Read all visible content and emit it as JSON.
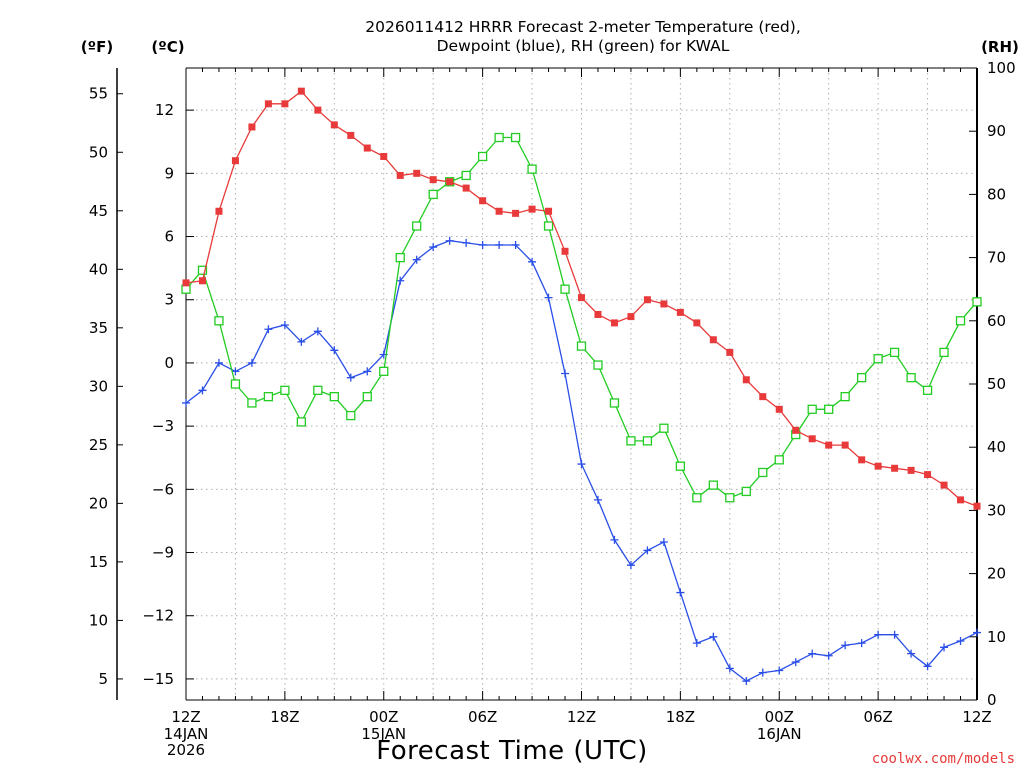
{
  "title_line1": "2026011412 HRRR Forecast 2-meter Temperature (red),",
  "title_line2": "Dewpoint (blue), RH (green) for KWAL",
  "credit": "coolwx.com/models",
  "colors": {
    "temperature": "#e83a3a",
    "dewpoint": "#2a4fe8",
    "rh": "#22cc22",
    "grid": "#b0b0b0",
    "axis": "#000000"
  },
  "chart_data": {
    "type": "line",
    "title": "2026011412 HRRR Forecast 2-meter Temperature (red), Dewpoint (blue), RH (green) for KWAL",
    "xlabel": "Forecast Time (UTC)",
    "x_hours": [
      0,
      1,
      2,
      3,
      4,
      5,
      6,
      7,
      8,
      9,
      10,
      11,
      12,
      13,
      14,
      15,
      16,
      17,
      18,
      19,
      20,
      21,
      22,
      23,
      24,
      25,
      26,
      27,
      28,
      29,
      30,
      31,
      32,
      33,
      34,
      35,
      36,
      37,
      38,
      39,
      40,
      41,
      42,
      43,
      44,
      45,
      46,
      47,
      48
    ],
    "xlim": [
      0,
      48
    ],
    "x_ticks": [
      {
        "hour": 0,
        "label": "12Z",
        "sub1": "14JAN",
        "sub2": "2026"
      },
      {
        "hour": 6,
        "label": "18Z",
        "sub1": "",
        "sub2": ""
      },
      {
        "hour": 12,
        "label": "00Z",
        "sub1": "15JAN",
        "sub2": ""
      },
      {
        "hour": 18,
        "label": "06Z",
        "sub1": "",
        "sub2": ""
      },
      {
        "hour": 24,
        "label": "12Z",
        "sub1": "",
        "sub2": ""
      },
      {
        "hour": 30,
        "label": "18Z",
        "sub1": "",
        "sub2": ""
      },
      {
        "hour": 36,
        "label": "00Z",
        "sub1": "16JAN",
        "sub2": ""
      },
      {
        "hour": 42,
        "label": "06Z",
        "sub1": "",
        "sub2": ""
      },
      {
        "hour": 48,
        "label": "12Z",
        "sub1": "",
        "sub2": ""
      }
    ],
    "axes": {
      "celsius": {
        "label": "(ºC)",
        "ticks": [
          12,
          9,
          6,
          3,
          0,
          -3,
          -6,
          -9,
          -12,
          -15
        ],
        "tick_labels": [
          "12",
          "9",
          "6",
          "3",
          "0",
          "−3",
          "−6",
          "−9",
          "−12",
          "−15"
        ],
        "range": [
          -16,
          14
        ]
      },
      "fahrenheit": {
        "label": "(ºF)",
        "ticks": [
          55,
          50,
          45,
          40,
          35,
          30,
          25,
          20,
          15,
          10,
          5
        ],
        "tick_labels": [
          "55",
          "50",
          "45",
          "40",
          "35",
          "30",
          "25",
          "20",
          "15",
          "10",
          "5"
        ]
      },
      "rh": {
        "label": "(RH)",
        "ticks": [
          100,
          90,
          80,
          70,
          60,
          50,
          40,
          30,
          20,
          10,
          0
        ],
        "tick_labels": [
          "100",
          "90",
          "80",
          "70",
          "60",
          "50",
          "40",
          "30",
          "20",
          "10",
          "0"
        ],
        "range": [
          0,
          100
        ]
      }
    },
    "series": [
      {
        "name": "Temperature",
        "units": "C",
        "marker": "filled-square",
        "values": [
          3.8,
          3.9,
          7.2,
          9.6,
          11.2,
          12.3,
          12.3,
          12.9,
          12.0,
          11.3,
          10.8,
          10.2,
          9.8,
          8.9,
          9.0,
          8.7,
          8.6,
          8.3,
          7.7,
          7.2,
          7.1,
          7.3,
          7.2,
          5.3,
          3.1,
          2.3,
          1.9,
          2.2,
          3.0,
          2.8,
          2.4,
          1.9,
          1.1,
          0.5,
          -0.8,
          -1.6,
          -2.2,
          -3.2,
          -3.6,
          -3.9,
          -3.9,
          -4.6,
          -4.9,
          -5.0,
          -5.1,
          -5.3,
          -5.8,
          -6.5,
          -6.8
        ]
      },
      {
        "name": "Dewpoint",
        "units": "C",
        "marker": "plus",
        "values": [
          -1.9,
          -1.3,
          0.0,
          -0.4,
          0.0,
          1.6,
          1.8,
          1.0,
          1.5,
          0.6,
          -0.7,
          -0.4,
          0.4,
          3.9,
          4.9,
          5.5,
          5.8,
          5.7,
          5.6,
          5.6,
          5.6,
          4.8,
          3.1,
          -0.5,
          -4.8,
          -6.5,
          -8.4,
          -9.6,
          -8.9,
          -8.5,
          -10.9,
          -13.3,
          -13.0,
          -14.5,
          -15.1,
          -14.7,
          -14.6,
          -14.2,
          -13.8,
          -13.9,
          -13.4,
          -13.3,
          -12.9,
          -12.9,
          -13.8,
          -14.4,
          -13.5,
          -13.2,
          -12.8
        ]
      },
      {
        "name": "RH",
        "units": "%",
        "marker": "open-square",
        "values": [
          65,
          68,
          60,
          50,
          47,
          48,
          49,
          44,
          49,
          48,
          45,
          48,
          52,
          70,
          75,
          80,
          82,
          83,
          86,
          89,
          89,
          84,
          75,
          65,
          56,
          53,
          47,
          41,
          41,
          43,
          37,
          32,
          34,
          32,
          33,
          36,
          38,
          42,
          46,
          46,
          48,
          51,
          54,
          55,
          51,
          49,
          55,
          60,
          63
        ]
      }
    ]
  }
}
